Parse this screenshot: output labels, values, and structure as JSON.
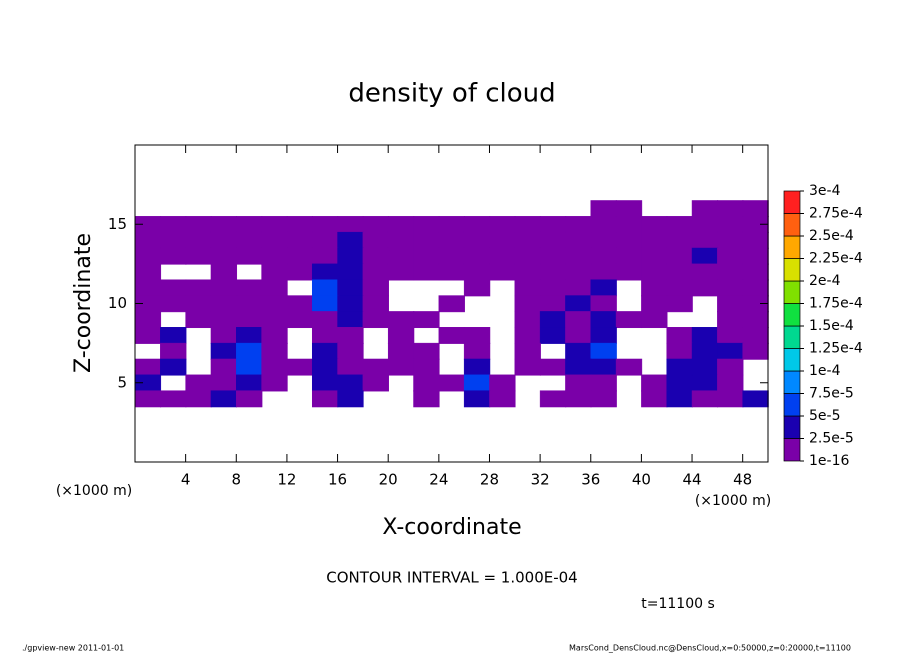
{
  "chart_data": {
    "type": "contour",
    "title": "density of cloud",
    "xlabel": "X-coordinate",
    "ylabel": "Z-coordinate",
    "x_unit": "(×1000 m)",
    "contour_interval": "CONTOUR INTERVAL = 1.000E-04",
    "time_label": "t=11100 s",
    "footer_left": "./gpview-new  2011-01-01",
    "footer_right": "MarsCond_DensCloud.nc@DensCloud,x=0:50000,z=0:20000,t=11100",
    "xlim": [
      0,
      50
    ],
    "ylim": [
      0,
      20
    ],
    "xticks": [
      4,
      8,
      12,
      16,
      20,
      24,
      28,
      32,
      36,
      40,
      44,
      48
    ],
    "yticks": [
      5,
      10,
      15
    ],
    "x": [
      1,
      3,
      5,
      7,
      9,
      11,
      13,
      15,
      17,
      19,
      21,
      23,
      25,
      27,
      29,
      31,
      33,
      35,
      37,
      39,
      41,
      43,
      45,
      47,
      49
    ],
    "y": [
      16,
      15,
      14,
      13,
      12,
      11,
      10,
      9,
      8,
      7,
      6,
      5,
      4
    ],
    "z": [
      [
        null,
        null,
        null,
        null,
        null,
        null,
        null,
        null,
        null,
        null,
        null,
        null,
        null,
        null,
        null,
        null,
        null,
        null,
        1e-05,
        1e-05,
        null,
        null,
        1e-05,
        1e-05,
        1e-05
      ],
      [
        1e-05,
        1e-05,
        1e-05,
        1e-05,
        1e-05,
        1e-05,
        1e-05,
        1e-05,
        1e-05,
        1e-05,
        1e-05,
        1e-05,
        1e-05,
        1e-05,
        1e-05,
        1e-05,
        1e-05,
        1e-05,
        1e-05,
        1e-05,
        1e-05,
        1e-05,
        1e-05,
        1e-05,
        1e-05
      ],
      [
        1e-05,
        1e-05,
        1e-05,
        1e-05,
        1e-05,
        1e-05,
        1e-05,
        1e-05,
        3e-05,
        1e-05,
        1e-05,
        1e-05,
        1e-05,
        1e-05,
        1e-05,
        1e-05,
        1e-05,
        1e-05,
        1e-05,
        1e-05,
        1e-05,
        1e-05,
        1e-05,
        1e-05,
        1e-05
      ],
      [
        1e-05,
        1e-05,
        1e-05,
        1e-05,
        1e-05,
        1e-05,
        1e-05,
        1e-05,
        3e-05,
        1e-05,
        1e-05,
        1e-05,
        1e-05,
        1e-05,
        1e-05,
        1e-05,
        1e-05,
        1e-05,
        1e-05,
        1e-05,
        1e-05,
        1e-05,
        3e-05,
        1e-05,
        1e-05
      ],
      [
        1e-05,
        null,
        null,
        1e-05,
        null,
        1e-05,
        1e-05,
        3e-05,
        3e-05,
        1e-05,
        1e-05,
        1e-05,
        1e-05,
        1e-05,
        1e-05,
        1e-05,
        1e-05,
        1e-05,
        1e-05,
        1e-05,
        1e-05,
        1e-05,
        1e-05,
        1e-05,
        1e-05
      ],
      [
        1e-05,
        1e-05,
        1e-05,
        1e-05,
        1e-05,
        1e-05,
        null,
        6e-05,
        3e-05,
        1e-05,
        null,
        null,
        null,
        1e-05,
        null,
        1e-05,
        1e-05,
        1e-05,
        3e-05,
        null,
        1e-05,
        1e-05,
        1e-05,
        1e-05,
        1e-05
      ],
      [
        1e-05,
        1e-05,
        1e-05,
        1e-05,
        1e-05,
        1e-05,
        1e-05,
        6e-05,
        3e-05,
        1e-05,
        null,
        null,
        1e-05,
        null,
        null,
        1e-05,
        1e-05,
        3e-05,
        1e-05,
        null,
        1e-05,
        1e-05,
        null,
        1e-05,
        1e-05
      ],
      [
        1e-05,
        null,
        1e-05,
        1e-05,
        1e-05,
        1e-05,
        1e-05,
        1e-05,
        3e-05,
        1e-05,
        1e-05,
        1e-05,
        null,
        null,
        null,
        1e-05,
        3e-05,
        1e-05,
        3e-05,
        1e-05,
        1e-05,
        null,
        null,
        1e-05,
        1e-05
      ],
      [
        1e-05,
        3e-05,
        null,
        1e-05,
        3e-05,
        1e-05,
        null,
        1e-05,
        1e-05,
        null,
        1e-05,
        null,
        1e-05,
        1e-05,
        null,
        1e-05,
        3e-05,
        1e-05,
        3e-05,
        null,
        null,
        1e-05,
        3e-05,
        1e-05,
        1e-05
      ],
      [
        null,
        1e-05,
        null,
        3e-05,
        6e-05,
        1e-05,
        null,
        3e-05,
        1e-05,
        null,
        1e-05,
        1e-05,
        null,
        1e-05,
        null,
        1e-05,
        null,
        3e-05,
        6e-05,
        null,
        null,
        1e-05,
        3e-05,
        3e-05,
        1e-05
      ],
      [
        1e-05,
        3e-05,
        null,
        1e-05,
        6e-05,
        1e-05,
        1e-05,
        3e-05,
        1e-05,
        1e-05,
        1e-05,
        1e-05,
        null,
        3e-05,
        null,
        1e-05,
        1e-05,
        3e-05,
        3e-05,
        1e-05,
        null,
        3e-05,
        3e-05,
        1e-05,
        null
      ],
      [
        3e-05,
        null,
        1e-05,
        1e-05,
        3e-05,
        1e-05,
        null,
        3e-05,
        3e-05,
        1e-05,
        null,
        1e-05,
        1e-05,
        6e-05,
        1e-05,
        null,
        null,
        1e-05,
        1e-05,
        null,
        1e-05,
        3e-05,
        3e-05,
        1e-05,
        null
      ],
      [
        1e-05,
        1e-05,
        1e-05,
        3e-05,
        1e-05,
        null,
        null,
        1e-05,
        3e-05,
        null,
        null,
        1e-05,
        null,
        3e-05,
        1e-05,
        null,
        1e-05,
        1e-05,
        1e-05,
        null,
        1e-05,
        3e-05,
        1e-05,
        1e-05,
        3e-05
      ]
    ],
    "levels": [
      {
        "value": 1e-16,
        "label": "1e-16"
      },
      {
        "value": 2.5e-05,
        "label": "2.5e-5"
      },
      {
        "value": 5e-05,
        "label": "5e-5"
      },
      {
        "value": 7.5e-05,
        "label": "7.5e-5"
      },
      {
        "value": 0.0001,
        "label": "1e-4"
      },
      {
        "value": 0.000125,
        "label": "1.25e-4"
      },
      {
        "value": 0.00015,
        "label": "1.5e-4"
      },
      {
        "value": 0.000175,
        "label": "1.75e-4"
      },
      {
        "value": 0.0002,
        "label": "2e-4"
      },
      {
        "value": 0.000225,
        "label": "2.25e-4"
      },
      {
        "value": 0.00025,
        "label": "2.5e-4"
      },
      {
        "value": 0.000275,
        "label": "2.75e-4"
      },
      {
        "value": 0.0003,
        "label": "3e-4"
      }
    ],
    "colors": [
      "#7a00a8",
      "#1a00b0",
      "#0040f0",
      "#0088ff",
      "#00c8e8",
      "#00d890",
      "#10e040",
      "#80e000",
      "#d8e000",
      "#ffa800",
      "#ff6010",
      "#ff2020",
      "#ff9090"
    ]
  }
}
